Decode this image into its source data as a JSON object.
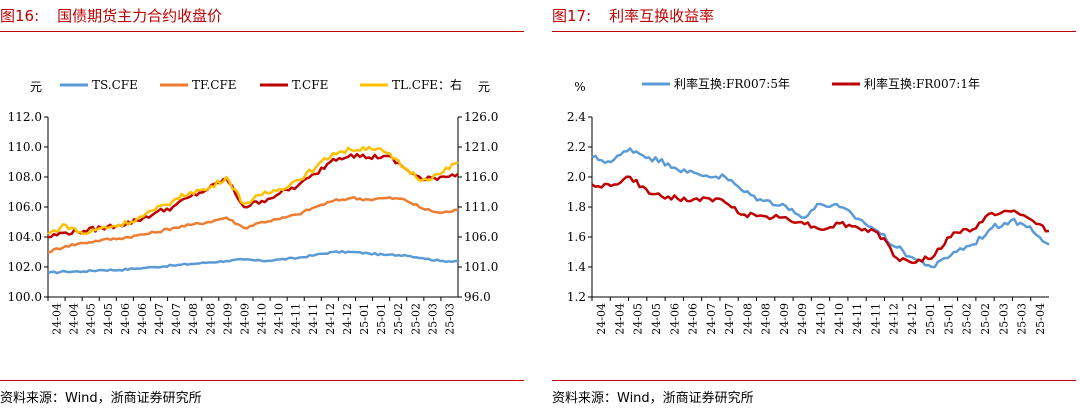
{
  "figures": [
    {
      "label": "图16:",
      "title": "国债期货主力合约收盘价",
      "source": "资料来源：Wind，浙商证券研究所"
    },
    {
      "label": "图17:",
      "title": "利率互换收益率",
      "source": "资料来源：Wind，浙商证券研究所"
    }
  ],
  "chart_data": [
    {
      "type": "line",
      "ylabel": "元",
      "ylabel_right": "元",
      "ylim": [
        100.0,
        112.0
      ],
      "yticks": [
        "100.0",
        "102.0",
        "104.0",
        "106.0",
        "108.0",
        "110.0",
        "112.0"
      ],
      "ylim_right": [
        96.0,
        126.0
      ],
      "yticks_right": [
        "96.0",
        "101.0",
        "106.0",
        "111.0",
        "116.0",
        "121.0",
        "126.0"
      ],
      "x": [
        "24-04",
        "24-04",
        "24-05",
        "24-05",
        "24-06",
        "24-06",
        "24-07",
        "24-07",
        "24-08",
        "24-08",
        "24-09",
        "24-09",
        "24-10",
        "24-10",
        "24-11",
        "24-11",
        "24-12",
        "24-12",
        "25-01",
        "25-01",
        "25-02",
        "25-02",
        "25-03",
        "25-03"
      ],
      "legend_position": "top",
      "grid": false,
      "series": [
        {
          "name": "TS.CFE",
          "color": "#5b9bd5",
          "axis": "left",
          "values": [
            101.6,
            101.7,
            101.7,
            101.8,
            101.8,
            101.9,
            102.0,
            102.1,
            102.2,
            102.3,
            102.4,
            102.5,
            102.4,
            102.5,
            102.6,
            102.8,
            103.0,
            103.0,
            102.9,
            102.8,
            102.8,
            102.6,
            102.4,
            102.4
          ]
        },
        {
          "name": "TF.CFE",
          "color": "#ed7d31",
          "axis": "left",
          "values": [
            103.0,
            103.4,
            103.6,
            103.8,
            103.9,
            104.1,
            104.3,
            104.6,
            104.8,
            105.0,
            105.3,
            104.6,
            105.0,
            105.2,
            105.5,
            106.0,
            106.4,
            106.6,
            106.5,
            106.6,
            106.5,
            105.9,
            105.6,
            105.8
          ]
        },
        {
          "name": "T.CFE",
          "color": "#c00000",
          "axis": "left",
          "values": [
            104.0,
            104.3,
            104.4,
            104.6,
            104.8,
            105.1,
            105.6,
            106.0,
            106.7,
            107.2,
            107.9,
            106.0,
            106.4,
            106.9,
            107.4,
            108.2,
            109.2,
            109.5,
            109.3,
            109.4,
            108.6,
            107.8,
            108.0,
            108.2
          ]
        },
        {
          "name": "TL.CFE：右",
          "color": "#ffc000",
          "axis": "right",
          "values": [
            106.5,
            108.0,
            106.5,
            107.5,
            108.0,
            109.0,
            110.5,
            112.0,
            113.5,
            114.0,
            116.0,
            111.5,
            113.0,
            114.0,
            115.5,
            117.5,
            120.0,
            120.5,
            121.0,
            120.0,
            117.5,
            115.5,
            116.5,
            118.5
          ]
        }
      ]
    },
    {
      "type": "line",
      "ylabel": "%",
      "ylim": [
        1.2,
        2.4
      ],
      "yticks": [
        "1.2",
        "1.4",
        "1.6",
        "1.8",
        "2.0",
        "2.2",
        "2.4"
      ],
      "x": [
        "24-04",
        "24-04",
        "24-05",
        "24-05",
        "24-06",
        "24-06",
        "24-07",
        "24-07",
        "24-08",
        "24-08",
        "24-09",
        "24-09",
        "24-10",
        "24-10",
        "24-11",
        "24-11",
        "24-12",
        "24-12",
        "25-01",
        "25-01",
        "25-02",
        "25-02",
        "25-03",
        "25-03",
        "25-04"
      ],
      "legend_position": "top",
      "grid": false,
      "series": [
        {
          "name": "利率互换:FR007:5年",
          "color": "#5b9bd5",
          "values": [
            2.13,
            2.1,
            2.19,
            2.13,
            2.09,
            2.03,
            2.01,
            2.0,
            1.9,
            1.84,
            1.82,
            1.73,
            1.82,
            1.8,
            1.72,
            1.64,
            1.53,
            1.45,
            1.4,
            1.5,
            1.55,
            1.66,
            1.71,
            1.67,
            1.55
          ]
        },
        {
          "name": "利率互换:FR007:1年",
          "color": "#c00000",
          "values": [
            1.95,
            1.94,
            2.0,
            1.89,
            1.87,
            1.84,
            1.86,
            1.83,
            1.75,
            1.74,
            1.73,
            1.7,
            1.65,
            1.69,
            1.66,
            1.63,
            1.46,
            1.43,
            1.48,
            1.63,
            1.65,
            1.76,
            1.77,
            1.72,
            1.64
          ]
        }
      ]
    }
  ]
}
